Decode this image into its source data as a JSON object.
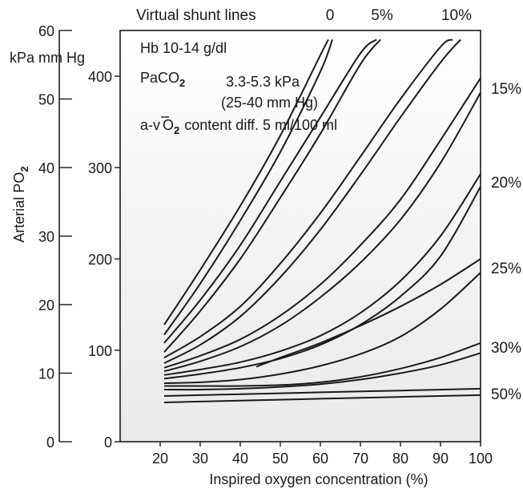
{
  "chart_data": {
    "type": "line",
    "header": "Virtual shunt lines",
    "xlabel": "Inspired oxygen concentration (%)",
    "ylabel": "Arterial PO",
    "ylabel_sub": "2",
    "xlim": [
      10,
      100
    ],
    "ylim_mmhg": [
      0,
      400
    ],
    "ylim_kpa": [
      0,
      60
    ],
    "x_ticks": [
      20,
      30,
      40,
      50,
      60,
      70,
      80,
      90,
      100
    ],
    "y_ticks_mmhg": [
      0,
      100,
      200,
      300,
      400
    ],
    "y_ticks_kpa": [
      0,
      10,
      20,
      30,
      40,
      50,
      60
    ],
    "unit_kpa": "kPa",
    "unit_mmhg": "mm Hg",
    "grid": false,
    "annotations": {
      "hb": "Hb 10-14 g/dl",
      "paco2_prefix": "PaCO",
      "paco2_sub": "2",
      "paco2_value": "3.3-5.3 kPa",
      "paco2_value_mmhg": "(25-40 mm Hg)",
      "avo2_prefix": "a-",
      "avo2_v": "v",
      "avo2_o": "O",
      "avo2_sub": "2",
      "avo2_rest": "content diff. 5 ml/100 ml"
    },
    "series": [
      {
        "name": "0",
        "x": [
          21,
          30,
          40,
          50,
          60,
          62
        ],
        "y": [
          128,
          188,
          258,
          335,
          423,
          440
        ]
      },
      {
        "name": "0",
        "x": [
          21,
          30,
          40,
          50,
          60,
          63
        ],
        "y": [
          117,
          173,
          242,
          317,
          405,
          440
        ]
      },
      {
        "name": "5%",
        "x": [
          21,
          30,
          40,
          50,
          60,
          70,
          74
        ],
        "y": [
          108,
          155,
          215,
          285,
          355,
          425,
          440
        ]
      },
      {
        "name": "5%",
        "x": [
          21,
          30,
          40,
          50,
          60,
          70,
          75
        ],
        "y": [
          98,
          143,
          200,
          267,
          337,
          413,
          440
        ]
      },
      {
        "name": "10%",
        "x": [
          21,
          30,
          40,
          50,
          60,
          70,
          80,
          90,
          93
        ],
        "y": [
          92,
          115,
          148,
          195,
          250,
          312,
          375,
          432,
          440
        ]
      },
      {
        "name": "10%",
        "x": [
          21,
          30,
          40,
          50,
          60,
          70,
          80,
          90,
          95
        ],
        "y": [
          86,
          106,
          137,
          180,
          232,
          292,
          355,
          415,
          440
        ]
      },
      {
        "name": "15%",
        "x": [
          21,
          30,
          40,
          50,
          60,
          70,
          80,
          90,
          100
        ],
        "y": [
          81,
          94,
          112,
          138,
          172,
          215,
          265,
          330,
          398
        ]
      },
      {
        "name": "15%",
        "x": [
          21,
          30,
          40,
          50,
          60,
          70,
          80,
          90,
          100
        ],
        "y": [
          77,
          88,
          104,
          127,
          158,
          196,
          243,
          305,
          382
        ]
      },
      {
        "name": "20%",
        "x": [
          21,
          30,
          40,
          50,
          60,
          70,
          80,
          90,
          100
        ],
        "y": [
          73,
          79,
          87,
          99,
          116,
          141,
          176,
          225,
          293
        ]
      },
      {
        "name": "20%",
        "x": [
          21,
          30,
          40,
          50,
          60,
          70,
          80,
          90,
          100
        ],
        "y": [
          69,
          74,
          81,
          91,
          106,
          128,
          159,
          203,
          279
        ]
      },
      {
        "name": "25%",
        "x": [
          21,
          30,
          40,
          50,
          60,
          70,
          80,
          90,
          100
        ],
        "y": [
          64,
          65,
          68,
          74,
          83,
          96,
          115,
          145,
          185
        ]
      },
      {
        "name": "25%",
        "x": [
          44,
          50,
          60,
          70,
          80,
          90,
          100
        ],
        "y": [
          82,
          92,
          108,
          127,
          148,
          172,
          200
        ]
      },
      {
        "name": "30%",
        "x": [
          21,
          30,
          40,
          50,
          60,
          70,
          80,
          90,
          100
        ],
        "y": [
          61,
          61,
          61,
          62,
          65,
          71,
          80,
          92,
          108
        ]
      },
      {
        "name": "30%",
        "x": [
          21,
          30,
          40,
          50,
          60,
          70,
          80,
          90,
          100
        ],
        "y": [
          57,
          57,
          58,
          60,
          63,
          68,
          75,
          84,
          97
        ]
      },
      {
        "name": "50%",
        "x": [
          21,
          40,
          60,
          80,
          100
        ],
        "y": [
          50,
          52,
          54,
          56,
          58
        ]
      },
      {
        "name": "50%",
        "x": [
          21,
          40,
          60,
          80,
          100
        ],
        "y": [
          43,
          45,
          47,
          49,
          51
        ]
      }
    ],
    "line_labels": [
      {
        "text": "0"
      },
      {
        "text": "5%"
      },
      {
        "text": "10%"
      },
      {
        "text": "15%"
      },
      {
        "text": "20%"
      },
      {
        "text": "25%"
      },
      {
        "text": "30%"
      },
      {
        "text": "50%"
      }
    ]
  }
}
